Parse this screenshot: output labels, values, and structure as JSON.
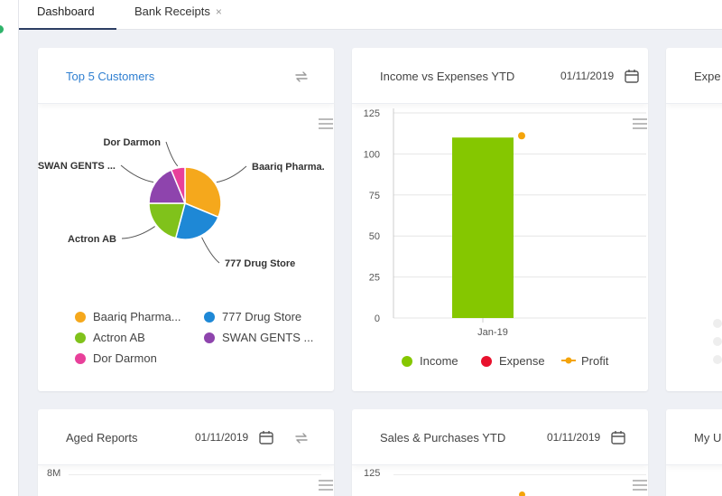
{
  "tabs": [
    {
      "label": "Dashboard",
      "active": true
    },
    {
      "label": "Bank Receipts",
      "active": false,
      "close": "×"
    }
  ],
  "cards": {
    "top_customers": {
      "title": "Top 5 Customers",
      "icon": "refresh-icon",
      "chart_data": {
        "type": "pie",
        "slices": [
          {
            "label": "Baariq Pharma.",
            "legend": "Baariq Pharma...",
            "value": 30,
            "color": "#f5a81c"
          },
          {
            "label": "777 Drug Store",
            "legend": "777 Drug Store",
            "value": 22,
            "color": "#1e88d6"
          },
          {
            "label": "Actron AB",
            "legend": "Actron AB",
            "value": 20,
            "color": "#80c21b"
          },
          {
            "label": "SWAN GENTS ...",
            "legend": "SWAN GENTS ...",
            "value": 18,
            "color": "#8e44ad"
          },
          {
            "label": "Dor Darmon",
            "legend": "Dor Darmon",
            "value": 6,
            "color": "#e8409a"
          }
        ]
      }
    },
    "income_expenses": {
      "title": "Income vs Expenses YTD",
      "date": "01/11/2019",
      "chart_data": {
        "type": "bar",
        "categories": [
          "Jan-19"
        ],
        "series": [
          {
            "name": "Income",
            "values": [
              110
            ],
            "color": "#85c700"
          },
          {
            "name": "Expense",
            "values": [
              0
            ],
            "color": "#e8112d"
          },
          {
            "name": "Profit",
            "values": [
              110
            ],
            "color": "#f4a40a"
          }
        ],
        "yticks": [
          "0",
          "25",
          "50",
          "75",
          "100",
          "125"
        ],
        "ylim": [
          0,
          125
        ]
      }
    },
    "expenses_partial": {
      "title": "Expe"
    },
    "aged_reports": {
      "title": "Aged Reports",
      "date": "01/11/2019",
      "ytick_top": "8M"
    },
    "sales_purchases": {
      "title": "Sales & Purchases YTD",
      "date": "01/11/2019",
      "ytick_top": "125"
    },
    "my_partial": {
      "title": "My U"
    }
  }
}
